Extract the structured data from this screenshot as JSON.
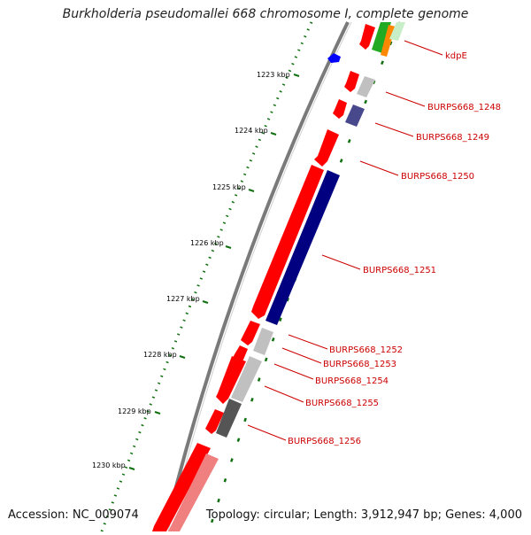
{
  "title": "Burkholderia pseudomallei 668 chromosome I, complete genome",
  "footer": {
    "accession": "Accession: NC_009074",
    "summary": "Topology: circular; Length: 3,912,947 bp; Genes: 4,000"
  },
  "map": {
    "kbp_ticks": [
      "1223 kbp",
      "1224 kbp",
      "1225 kbp",
      "1226 kbp",
      "1227 kbp",
      "1228 kbp",
      "1229 kbp",
      "1230 kbp"
    ],
    "gene_labels": [
      "kdpE",
      "BURPS668_1248",
      "BURPS668_1249",
      "BURPS668_1250",
      "BURPS668_1251",
      "BURPS668_1252",
      "BURPS668_1253",
      "BURPS668_1254",
      "BURPS668_1255",
      "BURPS668_1256"
    ],
    "colors": {
      "backbone": "#7a7a7a",
      "gene_red": "#ff0000",
      "gene_light_red": "#f08080",
      "label_red": "#cc0000",
      "cog_navy": "#000080",
      "cog_slate": "#48488c",
      "cog_light_gray": "#c0c0c0",
      "cog_dark_gray": "#555555",
      "cog_green": "#22aa22",
      "cog_orange": "#ff8800",
      "tick_green": "#107010",
      "marker_blue": "#0000ff"
    }
  }
}
